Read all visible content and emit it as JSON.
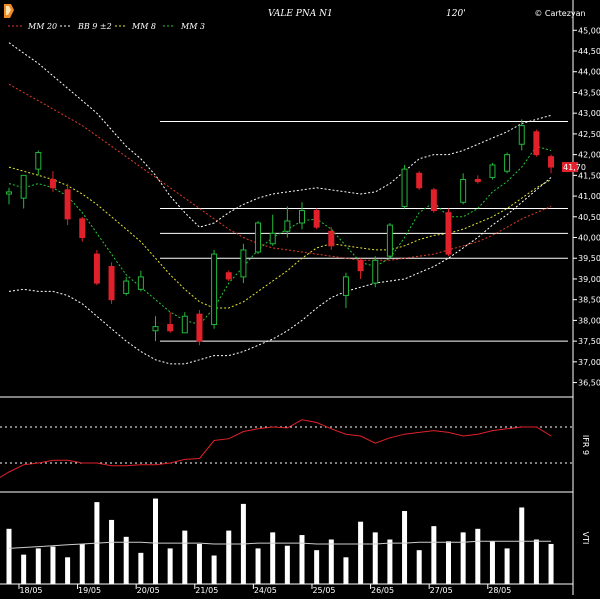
{
  "header": {
    "symbol": "VALE PNA N1",
    "timeframe": "120'",
    "brand": "© Cartezyan"
  },
  "legend": [
    {
      "label": "MM 20",
      "color": "#e03c28"
    },
    {
      "label": "BB 9 ±2",
      "color": "#ffffff"
    },
    {
      "label": "MM 8",
      "color": "#e6e632"
    },
    {
      "label": "MM 3",
      "color": "#28c83c"
    }
  ],
  "colors": {
    "up": "#22b83a",
    "down": "#e0212b",
    "bb": "#ffffff",
    "mm20": "#e03c28",
    "mm8": "#e6e632",
    "mm3": "#28c83c",
    "ifr": "#e0212b",
    "vol": "#ffffff",
    "grid": "#ffffff",
    "last_price_bg": "#e0212b"
  },
  "last_price_label": "41,70",
  "chart_data": [
    {
      "type": "candlestick",
      "title": "VALE PNA N1",
      "ylim": [
        36.2,
        45.2
      ],
      "yticks": [
        {
          "label": "36,50",
          "value": 36.5
        },
        {
          "label": "37,00",
          "value": 37.0
        },
        {
          "label": "37,50",
          "value": 37.5
        },
        {
          "label": "38,00",
          "value": 38.0
        },
        {
          "label": "38,50",
          "value": 38.5
        },
        {
          "label": "39,00",
          "value": 39.0
        },
        {
          "label": "39,50",
          "value": 39.5
        },
        {
          "label": "40,00",
          "value": 40.0
        },
        {
          "label": "40,50",
          "value": 40.5
        },
        {
          "label": "41,00",
          "value": 41.0
        },
        {
          "label": "41,50",
          "value": 41.5
        },
        {
          "label": "42,00",
          "value": 42.0
        },
        {
          "label": "42,50",
          "value": 42.5
        },
        {
          "label": "43,00",
          "value": 43.0
        },
        {
          "label": "43,50",
          "value": 43.5
        },
        {
          "label": "44,00",
          "value": 44.0
        },
        {
          "label": "44,50",
          "value": 44.5
        },
        {
          "label": "45,00",
          "value": 45.0
        }
      ],
      "xticks": [
        {
          "label": "18/05",
          "index": 1.5
        },
        {
          "label": "19/05",
          "index": 5.5
        },
        {
          "label": "20/05",
          "index": 9.5
        },
        {
          "label": "21/05",
          "index": 13.5
        },
        {
          "label": "24/05",
          "index": 17.5
        },
        {
          "label": "25/05",
          "index": 21.5
        },
        {
          "label": "26/05",
          "index": 25.5
        },
        {
          "label": "27/05",
          "index": 29.5
        },
        {
          "label": "28/05",
          "index": 33.5
        }
      ],
      "horizontal_levels": [
        37.5,
        39.5,
        40.1,
        40.7,
        42.8
      ],
      "candles": [
        {
          "o": 41.05,
          "h": 41.2,
          "l": 40.8,
          "c": 41.1
        },
        {
          "o": 40.95,
          "h": 41.5,
          "l": 40.7,
          "c": 41.5
        },
        {
          "o": 41.65,
          "h": 42.1,
          "l": 41.5,
          "c": 42.05
        },
        {
          "o": 41.4,
          "h": 41.6,
          "l": 41.1,
          "c": 41.2
        },
        {
          "o": 41.15,
          "h": 41.3,
          "l": 40.3,
          "c": 40.45
        },
        {
          "o": 40.45,
          "h": 40.5,
          "l": 39.9,
          "c": 40.0
        },
        {
          "o": 39.6,
          "h": 39.7,
          "l": 38.85,
          "c": 38.9
        },
        {
          "o": 39.3,
          "h": 39.4,
          "l": 38.4,
          "c": 38.5
        },
        {
          "o": 38.65,
          "h": 39.05,
          "l": 38.6,
          "c": 38.95
        },
        {
          "o": 38.75,
          "h": 39.2,
          "l": 38.7,
          "c": 39.05
        },
        {
          "o": 37.75,
          "h": 38.1,
          "l": 37.5,
          "c": 37.85
        },
        {
          "o": 37.9,
          "h": 38.2,
          "l": 37.7,
          "c": 37.75
        },
        {
          "o": 37.7,
          "h": 38.2,
          "l": 37.7,
          "c": 38.1
        },
        {
          "o": 38.15,
          "h": 38.25,
          "l": 37.4,
          "c": 37.5
        },
        {
          "o": 37.9,
          "h": 39.7,
          "l": 37.8,
          "c": 39.6
        },
        {
          "o": 39.15,
          "h": 39.2,
          "l": 38.95,
          "c": 39.0
        },
        {
          "o": 39.05,
          "h": 39.85,
          "l": 38.9,
          "c": 39.7
        },
        {
          "o": 39.65,
          "h": 40.4,
          "l": 39.6,
          "c": 40.35
        },
        {
          "o": 39.85,
          "h": 40.55,
          "l": 39.8,
          "c": 40.1
        },
        {
          "o": 40.15,
          "h": 40.75,
          "l": 40.0,
          "c": 40.4
        },
        {
          "o": 40.35,
          "h": 40.85,
          "l": 40.2,
          "c": 40.65
        },
        {
          "o": 40.65,
          "h": 40.7,
          "l": 40.2,
          "c": 40.25
        },
        {
          "o": 40.15,
          "h": 40.25,
          "l": 39.7,
          "c": 39.8
        },
        {
          "o": 38.6,
          "h": 39.15,
          "l": 38.3,
          "c": 39.05
        },
        {
          "o": 39.45,
          "h": 39.5,
          "l": 39.0,
          "c": 39.2
        },
        {
          "o": 38.9,
          "h": 39.55,
          "l": 38.8,
          "c": 39.45
        },
        {
          "o": 39.55,
          "h": 40.35,
          "l": 39.5,
          "c": 40.3
        },
        {
          "o": 40.75,
          "h": 41.75,
          "l": 40.7,
          "c": 41.65
        },
        {
          "o": 41.55,
          "h": 41.6,
          "l": 41.15,
          "c": 41.2
        },
        {
          "o": 41.15,
          "h": 41.2,
          "l": 40.6,
          "c": 40.65
        },
        {
          "o": 40.6,
          "h": 40.7,
          "l": 39.55,
          "c": 39.6
        },
        {
          "o": 40.85,
          "h": 41.55,
          "l": 40.8,
          "c": 41.4
        },
        {
          "o": 41.4,
          "h": 41.5,
          "l": 41.3,
          "c": 41.35
        },
        {
          "o": 41.45,
          "h": 41.8,
          "l": 41.4,
          "c": 41.75
        },
        {
          "o": 41.6,
          "h": 42.05,
          "l": 41.55,
          "c": 42.0
        },
        {
          "o": 42.25,
          "h": 42.85,
          "l": 42.1,
          "c": 42.7
        },
        {
          "o": 42.55,
          "h": 42.6,
          "l": 41.95,
          "c": 42.0
        },
        {
          "o": 41.95,
          "h": 42.0,
          "l": 41.55,
          "c": 41.7
        }
      ],
      "series": [
        {
          "name": "MM 20",
          "values": [
            43.7,
            43.5,
            43.3,
            43.1,
            42.9,
            42.7,
            42.45,
            42.2,
            41.95,
            41.7,
            41.45,
            41.2,
            40.95,
            40.7,
            40.45,
            40.2,
            40.0,
            39.85,
            39.75,
            39.7,
            39.65,
            39.6,
            39.55,
            39.5,
            39.45,
            39.45,
            39.45,
            39.5,
            39.55,
            39.6,
            39.7,
            39.8,
            39.9,
            40.05,
            40.25,
            40.45,
            40.6,
            40.75
          ]
        },
        {
          "name": "MM 8",
          "values": [
            41.7,
            41.6,
            41.5,
            41.4,
            41.25,
            41.05,
            40.8,
            40.5,
            40.2,
            39.9,
            39.5,
            39.1,
            38.75,
            38.45,
            38.3,
            38.3,
            38.45,
            38.7,
            38.95,
            39.2,
            39.5,
            39.75,
            39.85,
            39.8,
            39.75,
            39.7,
            39.7,
            39.8,
            39.95,
            40.05,
            40.1,
            40.2,
            40.35,
            40.5,
            40.7,
            40.95,
            41.2,
            41.4
          ]
        },
        {
          "name": "MM 3",
          "values": [
            41.3,
            41.2,
            41.3,
            41.2,
            41.0,
            40.6,
            40.1,
            39.6,
            39.1,
            38.8,
            38.5,
            38.2,
            38.0,
            37.9,
            38.3,
            38.9,
            39.3,
            39.7,
            40.0,
            40.2,
            40.4,
            40.45,
            40.2,
            39.8,
            39.4,
            39.3,
            39.5,
            40.0,
            40.6,
            40.85,
            40.5,
            40.5,
            40.7,
            41.1,
            41.35,
            41.7,
            42.2,
            42.1
          ]
        },
        {
          "name": "BB 9 ±2 (upper)",
          "values": [
            44.7,
            44.45,
            44.2,
            43.9,
            43.6,
            43.3,
            43.0,
            42.6,
            42.2,
            41.9,
            41.5,
            41.0,
            40.6,
            40.25,
            40.35,
            40.6,
            40.8,
            40.95,
            41.05,
            41.1,
            41.15,
            41.2,
            41.15,
            41.1,
            41.05,
            41.1,
            41.3,
            41.6,
            41.9,
            42.0,
            42.0,
            42.1,
            42.25,
            42.4,
            42.55,
            42.75,
            42.85,
            42.95
          ]
        },
        {
          "name": "BB 9 ±2 (lower)",
          "values": [
            38.7,
            38.75,
            38.7,
            38.7,
            38.6,
            38.4,
            38.1,
            37.8,
            37.5,
            37.25,
            37.05,
            36.95,
            36.95,
            37.05,
            37.15,
            37.15,
            37.25,
            37.4,
            37.55,
            37.75,
            38.0,
            38.3,
            38.55,
            38.7,
            38.8,
            38.9,
            38.95,
            39.0,
            39.15,
            39.3,
            39.5,
            39.75,
            40.0,
            40.3,
            40.55,
            40.85,
            41.15,
            41.45
          ]
        }
      ]
    },
    {
      "type": "line",
      "ylabel": "IFR 9",
      "ylim": [
        0,
        100
      ],
      "reference_levels": [
        70,
        30
      ],
      "series": [
        {
          "name": "IFR 9",
          "values": [
            20,
            28,
            30,
            33,
            33,
            30,
            30,
            27,
            27,
            28,
            28,
            30,
            34,
            35,
            55,
            57,
            65,
            68,
            70,
            69,
            78,
            75,
            68,
            62,
            60,
            52,
            58,
            62,
            64,
            66,
            64,
            60,
            62,
            66,
            68,
            70,
            70,
            60
          ]
        }
      ]
    },
    {
      "type": "bar",
      "ylabel": "VTI",
      "ylim": [
        0,
        100
      ],
      "values": [
        62,
        33,
        40,
        42,
        30,
        45,
        92,
        72,
        53,
        35,
        96,
        40,
        60,
        45,
        32,
        60,
        90,
        40,
        58,
        43,
        55,
        38,
        50,
        30,
        70,
        58,
        50,
        82,
        38,
        65,
        48,
        58,
        62,
        48,
        40,
        86,
        50,
        45
      ],
      "series": [
        {
          "name": "VTI average",
          "values": [
            40,
            41,
            42,
            43,
            44,
            45,
            46,
            47,
            47,
            47,
            46,
            46,
            46,
            46,
            45,
            45,
            45,
            46,
            46,
            46,
            46,
            45,
            45,
            45,
            45,
            45,
            46,
            46,
            47,
            47,
            47,
            47,
            48,
            48,
            48,
            48,
            48,
            48
          ]
        }
      ]
    }
  ]
}
